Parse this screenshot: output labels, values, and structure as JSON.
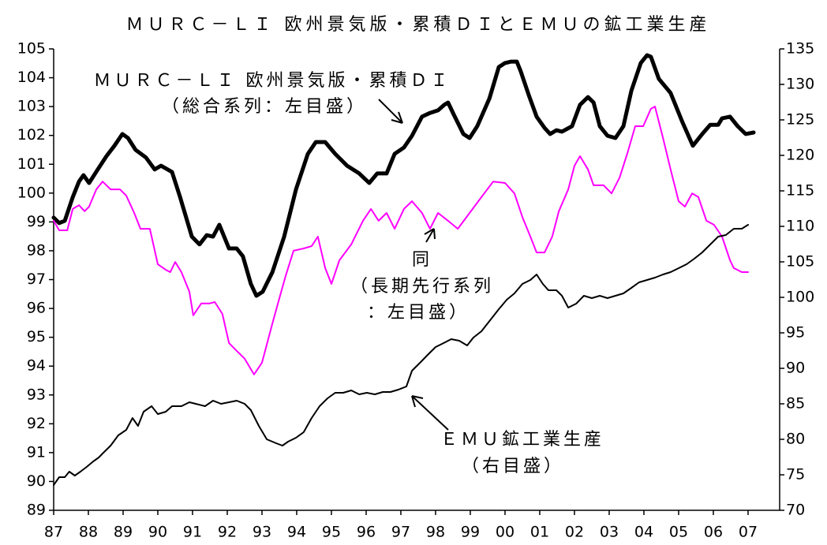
{
  "chart_data": {
    "type": "line",
    "title": "ＭＵＲＣ－ＬＩ 欧州景気版・累積ＤＩとＥＭＵの鉱工業生産",
    "xlim": [
      1987,
      2007.91
    ],
    "xticks": [
      {
        "value": 1987,
        "label": "87"
      },
      {
        "value": 1988,
        "label": "88"
      },
      {
        "value": 1989,
        "label": "89"
      },
      {
        "value": 1990,
        "label": "90"
      },
      {
        "value": 1991,
        "label": "91"
      },
      {
        "value": 1992,
        "label": "92"
      },
      {
        "value": 1993,
        "label": "93"
      },
      {
        "value": 1994,
        "label": "94"
      },
      {
        "value": 1995,
        "label": "95"
      },
      {
        "value": 1996,
        "label": "96"
      },
      {
        "value": 1997,
        "label": "97"
      },
      {
        "value": 1998,
        "label": "98"
      },
      {
        "value": 1999,
        "label": "99"
      },
      {
        "value": 2000,
        "label": "00"
      },
      {
        "value": 2001,
        "label": "01"
      },
      {
        "value": 2002,
        "label": "02"
      },
      {
        "value": 2003,
        "label": "03"
      },
      {
        "value": 2004,
        "label": "04"
      },
      {
        "value": 2005,
        "label": "05"
      },
      {
        "value": 2006,
        "label": "06"
      },
      {
        "value": 2007,
        "label": "07"
      }
    ],
    "ylim": [
      89,
      105
    ],
    "yticks": [
      89,
      90,
      91,
      92,
      93,
      94,
      95,
      96,
      97,
      98,
      99,
      100,
      101,
      102,
      103,
      104,
      105
    ],
    "y2lim": [
      70,
      135
    ],
    "y2ticks": [
      70,
      75,
      80,
      85,
      90,
      95,
      100,
      105,
      110,
      115,
      120,
      125,
      130,
      135
    ],
    "series": [
      {
        "label": [
          "ＭＵＲＣ－ＬＩ 欧州景気版・累積ＤＩ",
          "（総合系列：左目盛）"
        ],
        "color": "#000000",
        "axis": "y",
        "x": [
          1987,
          1987.16,
          1987.32,
          1987.55,
          1987.73,
          1987.86,
          1988.02,
          1988.27,
          1988.52,
          1988.75,
          1988.98,
          1989.14,
          1989.36,
          1989.66,
          1989.91,
          1990.09,
          1990.41,
          1990.64,
          1990.98,
          1991.2,
          1991.41,
          1991.59,
          1991.77,
          1992.05,
          1992.27,
          1992.45,
          1992.68,
          1992.84,
          1993.02,
          1993.3,
          1993.64,
          1993.98,
          1994.32,
          1994.55,
          1994.82,
          1995.11,
          1995.45,
          1995.8,
          1996.09,
          1996.32,
          1996.59,
          1996.82,
          1997.09,
          1997.32,
          1997.61,
          1997.84,
          1998.07,
          1998.25,
          1998.36,
          1998.52,
          1998.8,
          1998.98,
          1999.2,
          1999.55,
          1999.82,
          2000,
          2000.18,
          2000.34,
          2000.45,
          2000.68,
          2000.91,
          2001.14,
          2001.3,
          2001.48,
          2001.64,
          2001.93,
          2002.16,
          2002.39,
          2002.55,
          2002.73,
          2002.95,
          2003.18,
          2003.41,
          2003.64,
          2003.91,
          2004.09,
          2004.2,
          2004.43,
          2004.77,
          2005.11,
          2005.41,
          2005.68,
          2005.91,
          2006.14,
          2006.25,
          2006.48,
          2006.7,
          2006.93,
          2007.16
        ],
        "values": [
          99.15,
          98.96,
          99.04,
          99.86,
          100.4,
          100.62,
          100.35,
          100.82,
          101.28,
          101.64,
          102.05,
          101.91,
          101.5,
          101.23,
          100.82,
          100.95,
          100.73,
          99.86,
          98.49,
          98.22,
          98.54,
          98.49,
          98.9,
          98.08,
          98.08,
          97.81,
          96.85,
          96.44,
          96.58,
          97.26,
          98.49,
          100.13,
          101.36,
          101.77,
          101.77,
          101.36,
          100.95,
          100.68,
          100.35,
          100.68,
          100.68,
          101.36,
          101.58,
          101.99,
          102.65,
          102.78,
          102.87,
          103.06,
          103.14,
          102.73,
          102.05,
          101.91,
          102.32,
          103.28,
          104.37,
          104.51,
          104.56,
          104.56,
          104.23,
          103.41,
          102.65,
          102.26,
          102.05,
          102.18,
          102.13,
          102.32,
          103.06,
          103.33,
          103.14,
          102.32,
          101.99,
          101.91,
          102.32,
          103.55,
          104.51,
          104.78,
          104.73,
          103.96,
          103.47,
          102.46,
          101.64,
          102.05,
          102.37,
          102.37,
          102.59,
          102.65,
          102.32,
          102.05,
          102.1
        ]
      },
      {
        "label": [
          "同",
          "（長期先行系列",
          "：左目盛）"
        ],
        "color": "#ff00ff",
        "axis": "y",
        "x": [
          1987,
          1987.16,
          1987.39,
          1987.55,
          1987.73,
          1987.89,
          1988.02,
          1988.23,
          1988.41,
          1988.64,
          1988.91,
          1989.09,
          1989.32,
          1989.5,
          1989.77,
          1990,
          1990.23,
          1990.36,
          1990.5,
          1990.68,
          1990.91,
          1991.02,
          1991.25,
          1991.48,
          1991.64,
          1991.86,
          1992.05,
          1992.27,
          1992.5,
          1992.77,
          1993,
          1993.3,
          1993.52,
          1993.68,
          1993.91,
          1994.2,
          1994.43,
          1994.61,
          1994.82,
          1995,
          1995.23,
          1995.57,
          1995.91,
          1996.14,
          1996.36,
          1996.59,
          1996.82,
          1997.09,
          1997.32,
          1997.61,
          1997.84,
          1998.07,
          1998.36,
          1998.64,
          1998.98,
          1999.32,
          1999.66,
          2000,
          2000.27,
          2000.5,
          2000.73,
          2000.91,
          2001.14,
          2001.36,
          2001.55,
          2001.82,
          2002,
          2002.16,
          2002.39,
          2002.55,
          2002.84,
          2003.07,
          2003.3,
          2003.52,
          2003.75,
          2003.98,
          2004.2,
          2004.32,
          2004.55,
          2004.77,
          2005,
          2005.18,
          2005.39,
          2005.57,
          2005.8,
          2006.02,
          2006.25,
          2006.48,
          2006.59,
          2006.82,
          2007
        ],
        "values": [
          99.04,
          98.71,
          98.71,
          99.45,
          99.58,
          99.37,
          99.53,
          100.13,
          100.4,
          100.13,
          100.13,
          99.91,
          99.31,
          98.76,
          98.76,
          97.53,
          97.34,
          97.26,
          97.61,
          97.26,
          96.58,
          95.76,
          96.17,
          96.17,
          96.22,
          95.81,
          94.8,
          94.53,
          94.26,
          93.71,
          94.12,
          95.48,
          96.44,
          97.12,
          98,
          98.08,
          98.16,
          98.49,
          97.4,
          96.85,
          97.67,
          98.22,
          99.04,
          99.45,
          99.04,
          99.31,
          98.76,
          99.45,
          99.72,
          99.31,
          98.76,
          99.31,
          99.04,
          98.76,
          99.31,
          99.86,
          100.4,
          100.35,
          99.99,
          99.17,
          98.49,
          97.94,
          97.94,
          98.49,
          99.37,
          100.13,
          100.95,
          101.28,
          100.82,
          100.27,
          100.27,
          99.99,
          100.54,
          101.36,
          102.32,
          102.32,
          102.92,
          103,
          101.91,
          100.82,
          99.72,
          99.53,
          99.99,
          99.86,
          99.04,
          98.9,
          98.49,
          97.67,
          97.4,
          97.26,
          97.26
        ]
      },
      {
        "label": [
          "ＥＭＵ鉱工業生産",
          "（右目盛）"
        ],
        "color": "#000000",
        "axis": "y2",
        "x": [
          1987,
          1987.16,
          1987.32,
          1987.45,
          1987.61,
          1987.77,
          1987.95,
          1988.14,
          1988.3,
          1988.41,
          1988.64,
          1988.86,
          1989.09,
          1989.27,
          1989.43,
          1989.59,
          1989.82,
          1990,
          1990.23,
          1990.41,
          1990.68,
          1990.91,
          1991.09,
          1991.36,
          1991.59,
          1991.82,
          1992.05,
          1992.27,
          1992.5,
          1992.68,
          1992.91,
          1993.14,
          1993.41,
          1993.59,
          1993.75,
          1993.98,
          1994.2,
          1994.43,
          1994.66,
          1994.89,
          1995.11,
          1995.34,
          1995.57,
          1995.8,
          1996.02,
          1996.25,
          1996.48,
          1996.7,
          1996.93,
          1997.16,
          1997.32,
          1997.55,
          1997.77,
          1998,
          1998.23,
          1998.45,
          1998.68,
          1998.91,
          1999.09,
          1999.32,
          1999.59,
          1999.82,
          2000.05,
          2000.27,
          2000.5,
          2000.73,
          2000.91,
          2001.09,
          2001.25,
          2001.48,
          2001.64,
          2001.82,
          2002.05,
          2002.27,
          2002.5,
          2002.73,
          2002.95,
          2003.18,
          2003.41,
          2003.64,
          2003.86,
          2004.09,
          2004.32,
          2004.55,
          2004.77,
          2005,
          2005.23,
          2005.45,
          2005.68,
          2005.91,
          2006.14,
          2006.36,
          2006.59,
          2006.82,
          2007
        ],
        "values": [
          73.56,
          74.67,
          74.67,
          75.44,
          74.89,
          75.44,
          76.11,
          76.89,
          77.44,
          78,
          79.11,
          80.56,
          81.33,
          83,
          81.89,
          83.89,
          84.67,
          83.56,
          83.89,
          84.67,
          84.67,
          85.22,
          85,
          84.67,
          85.44,
          85,
          85.22,
          85.44,
          85,
          84.11,
          81.89,
          80,
          79.44,
          79.11,
          79.67,
          80.22,
          81,
          83,
          84.67,
          85.78,
          86.56,
          86.56,
          86.89,
          86.33,
          86.56,
          86.33,
          86.67,
          86.67,
          87,
          87.44,
          89.67,
          90.78,
          91.89,
          93,
          93.56,
          94.11,
          93.89,
          93.22,
          94.33,
          95.22,
          96.89,
          98.33,
          99.67,
          100.56,
          101.89,
          102.44,
          103.22,
          101.89,
          101,
          101,
          100.22,
          98.56,
          99.11,
          100.22,
          99.89,
          100.22,
          99.89,
          100.22,
          100.56,
          101.33,
          102.11,
          102.44,
          102.78,
          103.22,
          103.56,
          104.11,
          104.67,
          105.44,
          106.33,
          107.44,
          108.56,
          108.78,
          109.67,
          109.67,
          110.22
        ]
      }
    ]
  }
}
